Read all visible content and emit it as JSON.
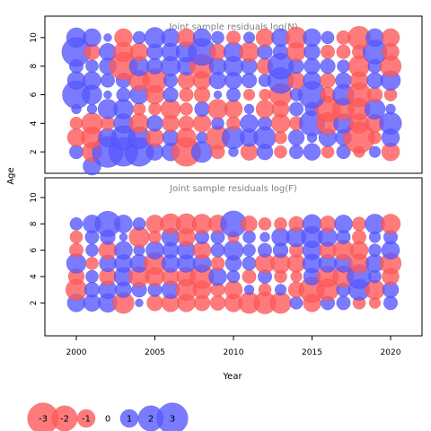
{
  "chart_data": {
    "type": "scatter",
    "subtype": "bubble",
    "xlabel": "Year",
    "ylabel": "Age",
    "xlim": [
      1998,
      2022
    ],
    "x_ticks": [
      "2000",
      "2005",
      "2010",
      "2015",
      "2020"
    ],
    "x_tick_values": [
      2000,
      2005,
      2010,
      2015,
      2020
    ],
    "colors": {
      "negative": "#ff5a5a",
      "positive": "#5a5aff",
      "positive_edge": "#3838d8",
      "negative_edge": "#d84a4a"
    },
    "legend": {
      "placement": "bottom-left",
      "values": [
        -3,
        -2,
        -1,
        0,
        1,
        2,
        3
      ],
      "labels": [
        "-3",
        "-2",
        "-1",
        "0",
        "1",
        "2",
        "3"
      ]
    },
    "panels": [
      {
        "title": "Joint sample residuals log(N)",
        "ylim": [
          0.5,
          11.5
        ],
        "y_ticks": [
          "2",
          "4",
          "6",
          "8",
          "10"
        ],
        "y_tick_values": [
          2,
          4,
          6,
          8,
          10
        ],
        "years": [
          2000,
          2001,
          2002,
          2003,
          2004,
          2005,
          2006,
          2007,
          2008,
          2009,
          2010,
          2011,
          2012,
          2013,
          2014,
          2015,
          2016,
          2017,
          2018,
          2019,
          2020
        ],
        "ages": [
          1,
          2,
          3,
          4,
          5,
          6,
          7,
          8,
          9,
          10
        ],
        "residuals": [
          [
            0,
            1.0,
            0,
            0,
            0,
            0,
            0,
            0,
            0,
            0,
            0,
            0,
            0,
            0,
            0,
            0,
            0,
            0,
            0,
            0,
            0
          ],
          [
            0.6,
            -1.2,
            3.0,
            2.6,
            2.6,
            0.9,
            1.0,
            -2.6,
            1.4,
            -0.6,
            0.3,
            -0.9,
            0.8,
            -0.5,
            0.6,
            0.9,
            -0.5,
            0.6,
            -0.4,
            0.4,
            -1.0
          ],
          [
            -1.0,
            -1.4,
            1.1,
            1.8,
            1.5,
            -1.0,
            0.8,
            -1.2,
            0.4,
            -1.7,
            1.6,
            1.0,
            1.5,
            -0.5,
            0.8,
            0.3,
            1.0,
            0.8,
            -3.0,
            -0.5,
            1.0
          ],
          [
            -0.5,
            -1.4,
            -0.6,
            1.2,
            -1.2,
            0.8,
            -0.9,
            -0.7,
            -1.0,
            0.5,
            -0.6,
            1.0,
            0.6,
            -1.1,
            -0.6,
            2.0,
            -1.5,
            1.2,
            -1.2,
            -1.0,
            1.5
          ],
          [
            0.3,
            0.3,
            1.2,
            1.2,
            -0.5,
            -0.5,
            -1.2,
            -0.5,
            0.7,
            -1.2,
            -1.0,
            0.3,
            -1.0,
            -0.9,
            0.6,
            0.6,
            -2.0,
            -1.5,
            -1.5,
            1.3,
            0.3
          ],
          [
            2.4,
            1.2,
            0.2,
            0.6,
            1.1,
            -1.1,
            0.7,
            -0.6,
            -0.8,
            0.2,
            0.6,
            -0.4,
            -0.4,
            -1.6,
            0.5,
            2.3,
            -0.7,
            1.4,
            -1.8,
            -0.7,
            -0.5
          ],
          [
            1.0,
            1.0,
            0.6,
            0.7,
            -1.3,
            -1.8,
            0.6,
            -0.9,
            -1.0,
            0.9,
            0.9,
            0.7,
            0.5,
            2.1,
            -0.9,
            1.0,
            -0.7,
            0.8,
            -1.0,
            0.8,
            1.2
          ],
          [
            0.6,
            0.5,
            0.9,
            -2.4,
            1.2,
            0.8,
            1.2,
            1.0,
            -1.8,
            0.9,
            1.2,
            0.8,
            -0.8,
            2.1,
            0.7,
            0.8,
            0.7,
            0.5,
            -1.4,
            0.6,
            -1.4
          ],
          [
            2.6,
            -0.8,
            0.9,
            -1.2,
            -1.0,
            0.8,
            1.0,
            1.3,
            2.3,
            -0.8,
            1.2,
            -1.2,
            0.7,
            0.7,
            -1.1,
            0.8,
            -0.6,
            -0.6,
            -0.6,
            1.8,
            -0.9
          ],
          [
            1.2,
            1.0,
            0.2,
            -1.0,
            0.5,
            1.3,
            1.0,
            -1.0,
            1.0,
            0.5,
            -0.6,
            0.4,
            -1.0,
            1.0,
            -1.4,
            1.0,
            0.5,
            -0.6,
            -1.6,
            1.0,
            -1.0
          ]
        ]
      },
      {
        "title": "Joint sample residuals log(F)",
        "ylim": [
          -0.5,
          11.5
        ],
        "y_ticks": [
          "2",
          "4",
          "6",
          "8",
          "10"
        ],
        "y_tick_values": [
          2,
          4,
          6,
          8,
          10
        ],
        "years": [
          2000,
          2001,
          2002,
          2003,
          2004,
          2005,
          2006,
          2007,
          2008,
          2009,
          2010,
          2011,
          2012,
          2013,
          2014,
          2015,
          2016,
          2017,
          2018,
          2019,
          2020
        ],
        "ages": [
          2,
          3,
          4,
          5,
          6,
          7,
          8
        ],
        "residuals": [
          [
            1.0,
            0.9,
            1.1,
            -1.4,
            0.2,
            -0.8,
            -1.0,
            -1.0,
            -0.8,
            -0.7,
            -1.0,
            -1.4,
            -1.5,
            -1.4,
            0.5,
            -1.0,
            0.6,
            0.6,
            -0.5,
            -0.4,
            0.6
          ],
          [
            -1.4,
            0.7,
            1.0,
            0.8,
            0.7,
            0.6,
            1.0,
            -1.4,
            -1.0,
            -0.6,
            -1.0,
            0.3,
            -0.5,
            0.4,
            -0.8,
            -2.0,
            -1.5,
            0.6,
            1.4,
            -1.2,
            0.8
          ],
          [
            -0.8,
            0.5,
            -0.9,
            1.1,
            -1.3,
            -1.1,
            -0.9,
            -1.1,
            -1.8,
            1.0,
            0.5,
            -0.6,
            0.6,
            -0.5,
            -0.4,
            0.9,
            -1.4,
            -1.4,
            1.8,
            0.5,
            -0.9
          ],
          [
            1.2,
            -0.5,
            0.9,
            1.0,
            1.0,
            -1.5,
            1.0,
            1.0,
            1.0,
            -0.6,
            0.8,
            0.6,
            -1.2,
            -1.2,
            -1.0,
            1.1,
            1.0,
            1.0,
            -1.2,
            1.0,
            -1.4
          ],
          [
            -0.6,
            0.5,
            -1.0,
            1.0,
            0.4,
            1.0,
            0.8,
            1.0,
            -1.0,
            0.6,
            1.2,
            0.5,
            0.6,
            0.7,
            -0.6,
            1.1,
            -0.9,
            -1.3,
            -1.0,
            0.5,
            1.0
          ],
          [
            -0.5,
            0.6,
            0.7,
            0.2,
            -1.3,
            -0.5,
            1.0,
            -1.0,
            0.6,
            0.6,
            -0.4,
            0.5,
            0.3,
            1.0,
            1.2,
            1.4,
            1.1,
            0.6,
            -0.6,
            0.4,
            0.6
          ],
          [
            0.5,
            1.0,
            2.0,
            1.0,
            0.5,
            -1.0,
            -1.3,
            -1.3,
            -1.2,
            -1.0,
            2.1,
            -0.8,
            -0.5,
            -0.5,
            -0.7,
            1.1,
            -0.8,
            1.0,
            -0.6,
            1.2,
            -1.2
          ]
        ]
      }
    ]
  }
}
